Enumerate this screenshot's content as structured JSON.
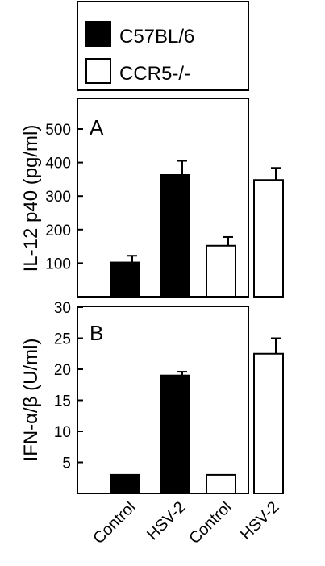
{
  "legend": {
    "items": [
      {
        "label": "C57BL/6",
        "fill": "#000000"
      },
      {
        "label": "CCR5-/-",
        "fill": "#ffffff"
      }
    ]
  },
  "categories": [
    "Control",
    "HSV-2",
    "Control",
    "HSV-2"
  ],
  "chart_data": [
    {
      "type": "bar",
      "panel": "A",
      "ylabel": "IL-12 p40 (pg/ml)",
      "ylim": [
        0,
        550
      ],
      "yticks": [
        100,
        200,
        300,
        400,
        500
      ],
      "categories": [
        "Control",
        "HSV-2",
        "Control",
        "HSV-2"
      ],
      "series": [
        {
          "name": "C57BL/6",
          "fill": "#000000",
          "values": [
            102,
            363,
            null,
            null
          ],
          "errors": [
            20,
            42,
            null,
            null
          ]
        },
        {
          "name": "CCR5-/-",
          "fill": "#ffffff",
          "values": [
            null,
            null,
            152,
            348
          ],
          "errors": [
            null,
            null,
            26,
            36
          ]
        }
      ],
      "grid": false
    },
    {
      "type": "bar",
      "panel": "B",
      "ylabel": "IFN-α/β (U/ml)",
      "ylim": [
        0,
        30
      ],
      "yticks": [
        5,
        10,
        15,
        20,
        25,
        30
      ],
      "categories": [
        "Control",
        "HSV-2",
        "Control",
        "HSV-2"
      ],
      "series": [
        {
          "name": "C57BL/6",
          "fill": "#000000",
          "values": [
            3,
            19,
            null,
            null
          ],
          "errors": [
            0,
            0.6,
            null,
            null
          ]
        },
        {
          "name": "CCR5-/-",
          "fill": "#ffffff",
          "values": [
            null,
            null,
            3,
            22.5
          ],
          "errors": [
            null,
            null,
            0,
            2.5
          ]
        }
      ],
      "grid": false
    }
  ]
}
